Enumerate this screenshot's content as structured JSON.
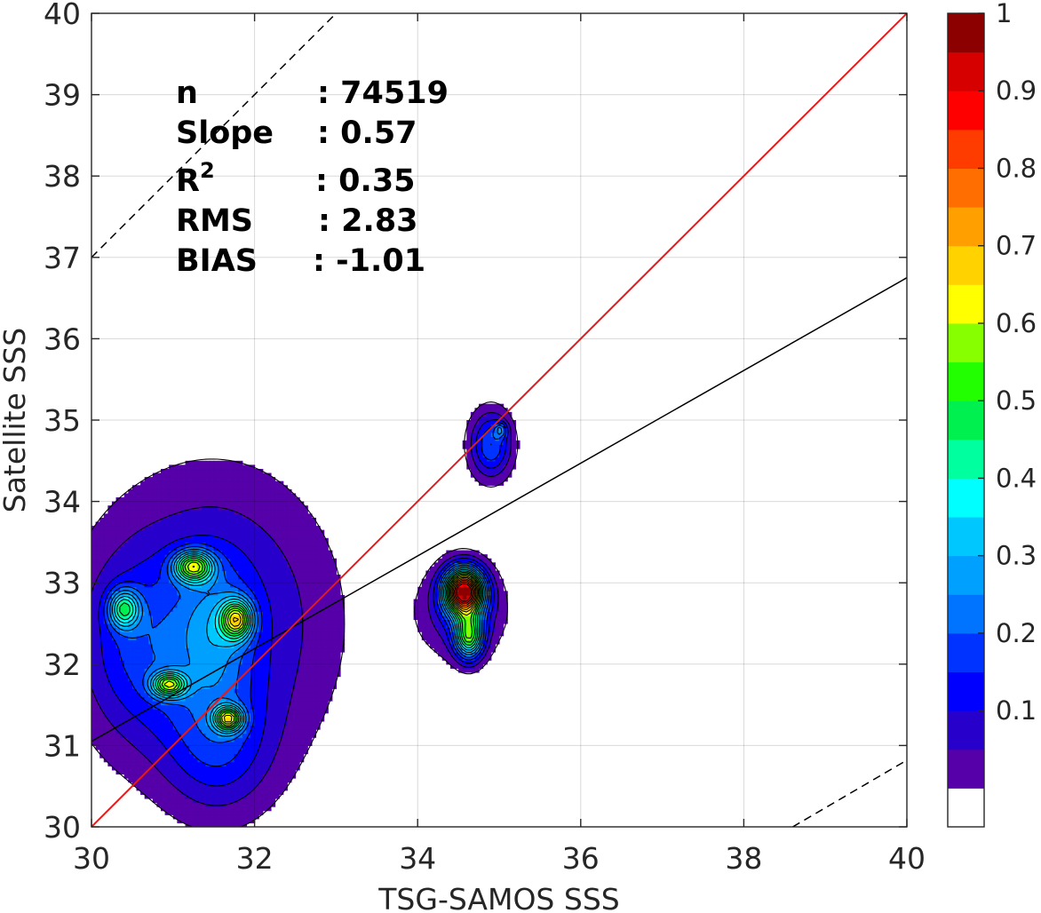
{
  "chart_data": {
    "type": "heatmap",
    "subtype": "filled-contour density scatter",
    "xlabel": "TSG-SAMOS SSS",
    "ylabel": "Satellite SSS",
    "xlim": [
      30,
      40
    ],
    "ylim": [
      30,
      40
    ],
    "xticks": [
      "30",
      "32",
      "34",
      "36",
      "38",
      "40"
    ],
    "yticks": [
      "30",
      "31",
      "32",
      "33",
      "34",
      "35",
      "36",
      "37",
      "38",
      "39",
      "40"
    ],
    "grid": true,
    "stats": [
      {
        "label": "n",
        "sep": ":",
        "value": "74519"
      },
      {
        "label": "Slope",
        "sep": ":",
        "value": "0.57"
      },
      {
        "label": "R",
        "sup": "2",
        "sep": ":",
        "value": "0.35"
      },
      {
        "label": "RMS",
        "sep": ":",
        "value": "2.83"
      },
      {
        "label": "BIAS",
        "sep": ":",
        "value": "-1.01"
      }
    ],
    "lines": {
      "one_to_one": {
        "color": "#e41a1c",
        "points": [
          [
            30,
            30
          ],
          [
            40,
            40
          ]
        ]
      },
      "fit": {
        "color": "#000000",
        "points": [
          [
            30,
            31.05
          ],
          [
            40,
            36.75
          ]
        ]
      },
      "upper_bound": {
        "style": "dashed",
        "points": [
          [
            30,
            37.0
          ],
          [
            33.1,
            40.1
          ]
        ]
      },
      "lower_bound": {
        "style": "dashed",
        "points": [
          [
            38.6,
            30
          ],
          [
            40,
            30.82
          ]
        ]
      }
    },
    "colorbar": {
      "ticks": [
        "0.1",
        "0.2",
        "0.3",
        "0.4",
        "0.5",
        "0.6",
        "0.7",
        "0.8",
        "0.9",
        "1"
      ],
      "range": [
        0,
        1
      ],
      "levels": 20,
      "colors": [
        "#ffffff",
        "#5500a8",
        "#2800cc",
        "#0000ff",
        "#0033ff",
        "#0073ff",
        "#00a0ff",
        "#00c8ff",
        "#00ffff",
        "#00ff9e",
        "#00f050",
        "#22ff00",
        "#88ff00",
        "#ffff00",
        "#ffd200",
        "#ffa000",
        "#ff6e00",
        "#ff3c00",
        "#ff0000",
        "#d70000",
        "#8c0000"
      ]
    },
    "density_blobs": [
      {
        "cx": 31.5,
        "cy": 32.5,
        "rx": 1.55,
        "ry": 1.95,
        "peak": 0.18
      },
      {
        "cx": 30.55,
        "cy": 32.2,
        "rx": 0.75,
        "ry": 1.2,
        "peak": 0.12
      },
      {
        "cx": 31.55,
        "cy": 31.0,
        "rx": 0.7,
        "ry": 0.9,
        "peak": 0.14
      },
      {
        "cx": 30.4,
        "cy": 32.68,
        "rx": 0.2,
        "ry": 0.25,
        "peak": 0.35
      },
      {
        "cx": 31.25,
        "cy": 33.2,
        "rx": 0.25,
        "ry": 0.2,
        "peak": 0.5
      },
      {
        "cx": 31.78,
        "cy": 32.55,
        "rx": 0.2,
        "ry": 0.25,
        "peak": 0.5
      },
      {
        "cx": 30.95,
        "cy": 31.75,
        "rx": 0.22,
        "ry": 0.16,
        "peak": 0.45
      },
      {
        "cx": 31.68,
        "cy": 31.33,
        "rx": 0.18,
        "ry": 0.16,
        "peak": 0.5
      },
      {
        "cx": 31.5,
        "cy": 32.4,
        "rx": 0.45,
        "ry": 0.9,
        "peak": 0.14
      },
      {
        "cx": 34.57,
        "cy": 32.9,
        "rx": 0.25,
        "ry": 0.3,
        "peak": 0.95
      },
      {
        "cx": 34.63,
        "cy": 32.35,
        "rx": 0.18,
        "ry": 0.3,
        "peak": 0.5
      },
      {
        "cx": 34.55,
        "cy": 32.65,
        "rx": 0.55,
        "ry": 0.6,
        "peak": 0.16
      },
      {
        "cx": 34.9,
        "cy": 34.7,
        "rx": 0.28,
        "ry": 0.45,
        "peak": 0.25
      },
      {
        "cx": 35.02,
        "cy": 34.88,
        "rx": 0.08,
        "ry": 0.1,
        "peak": 0.17
      }
    ]
  }
}
